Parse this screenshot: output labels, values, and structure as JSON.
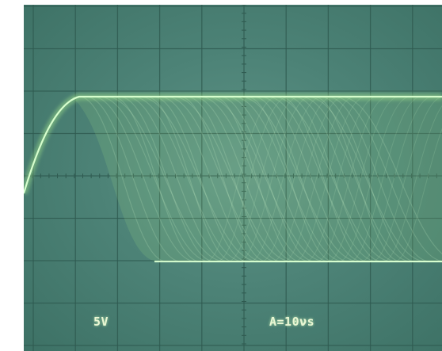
{
  "scope": {
    "volts_per_div": "5V",
    "timebase": "A=10νs",
    "colors": {
      "screen": "#4d8377",
      "grid": "#2f5a50",
      "trace": "#d8ffd0",
      "trace_glow": "#9fe08a"
    }
  }
}
